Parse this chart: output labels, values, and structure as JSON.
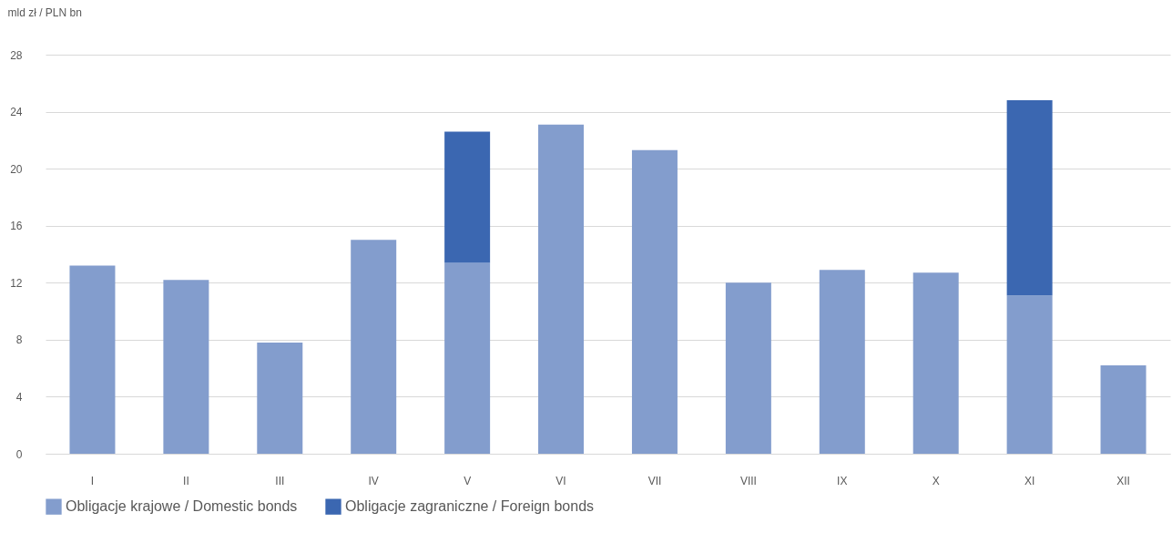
{
  "chart_data": {
    "type": "bar",
    "stacked": true,
    "ylabel": "mld zł / PLN bn",
    "categories": [
      "I",
      "II",
      "III",
      "IV",
      "V",
      "VI",
      "VII",
      "VIII",
      "IX",
      "X",
      "XI",
      "XII"
    ],
    "series": [
      {
        "name": "Obligacje krajowe / Domestic bonds",
        "color": "#839dcd",
        "values": [
          13.2,
          12.2,
          7.8,
          15.0,
          13.4,
          23.1,
          21.3,
          12.0,
          12.9,
          12.7,
          11.1,
          6.2
        ]
      },
      {
        "name": "Obligacje zagraniczne / Foreign bonds",
        "color": "#3b67b1",
        "values": [
          null,
          null,
          null,
          null,
          9.2,
          null,
          null,
          null,
          null,
          null,
          13.7,
          null
        ]
      }
    ],
    "ylim": [
      0,
      28
    ],
    "yticks": [
      0,
      4,
      8,
      12,
      16,
      20,
      24,
      28
    ],
    "grid": "y",
    "legend": "bottom"
  }
}
